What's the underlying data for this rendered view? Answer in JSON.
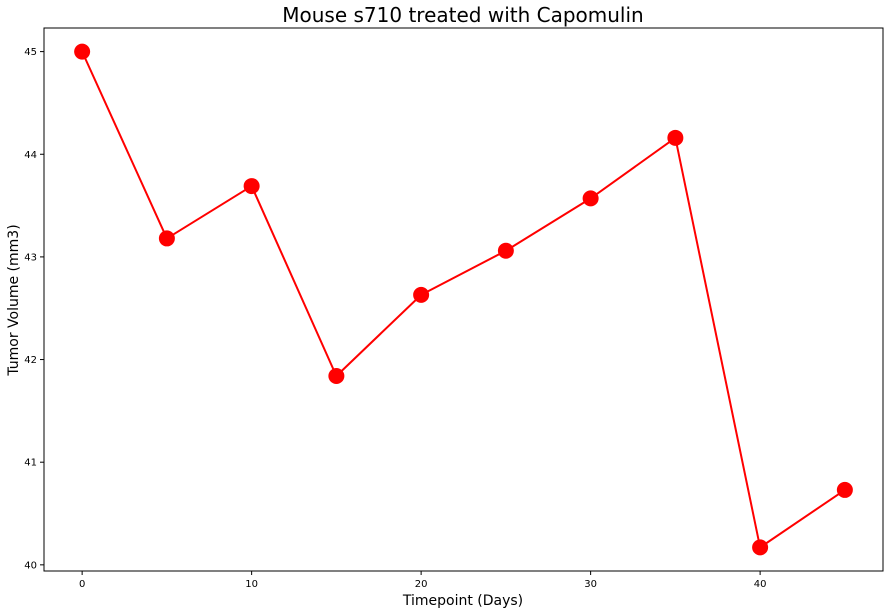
{
  "chart_data": {
    "type": "line",
    "title": "Mouse s710 treated with Capomulin",
    "xlabel": "Timepoint (Days)",
    "ylabel": "Tumor Volume (mm3)",
    "xlim": [
      -2.25,
      47.25
    ],
    "ylim": [
      39.94,
      45.23
    ],
    "x_ticks": [
      0,
      10,
      20,
      30,
      40
    ],
    "y_ticks": [
      40,
      41,
      42,
      43,
      44,
      45
    ],
    "grid": false,
    "series": [
      {
        "color": "#ff0000",
        "marker": "circle",
        "x": [
          0,
          5,
          10,
          15,
          20,
          25,
          30,
          35,
          40,
          45
        ],
        "y": [
          45.0,
          43.18,
          43.69,
          41.84,
          42.63,
          43.06,
          43.57,
          44.16,
          40.17,
          40.73
        ]
      }
    ]
  }
}
